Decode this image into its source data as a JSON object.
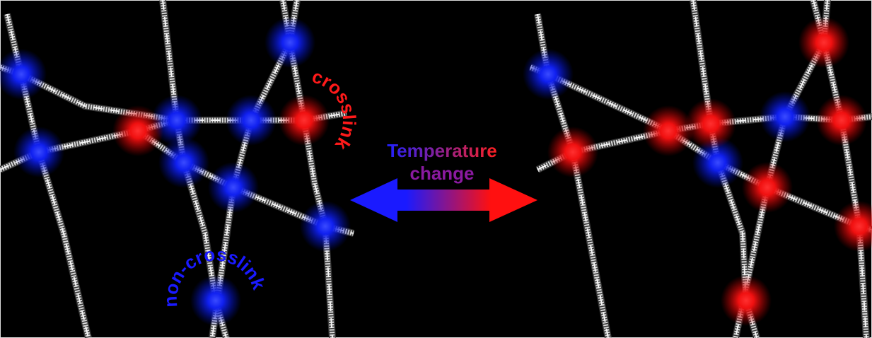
{
  "left_panel": {
    "crosslink_label": "crosslink",
    "non_crosslink_label": "non-crosslink"
  },
  "center": {
    "caption_lines": [
      "Temperature",
      "change"
    ]
  }
}
